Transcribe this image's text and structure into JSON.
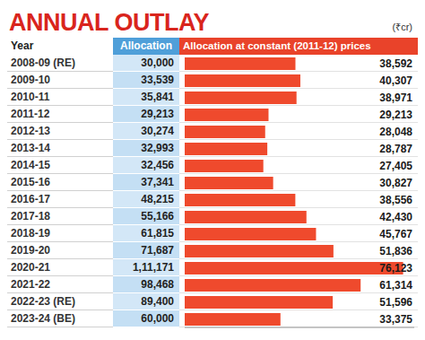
{
  "chart_data": {
    "type": "bar",
    "orientation": "horizontal",
    "title": "ANNUAL OUTLAY",
    "subtitle": "(₹cr)",
    "categories": [
      "2008-09 (RE)",
      "2009-10",
      "2010-11",
      "2011-12",
      "2012-13",
      "2013-14",
      "2014-15",
      "2015-16",
      "2016-17",
      "2017-18",
      "2018-19",
      "2019-20",
      "2020-21",
      "2021-22",
      "2022-23 (RE)",
      "2023-24 (BE)"
    ],
    "series": [
      {
        "name": "Allocation at constant (2011-12) prices",
        "color": "#ef4a2d",
        "values": [
          38592,
          40307,
          38971,
          29213,
          28048,
          28787,
          27405,
          30827,
          38556,
          42430,
          45767,
          51836,
          76123,
          61314,
          51596,
          33375
        ],
        "value_labels": [
          "38,592",
          "40,307",
          "38,971",
          "29,213",
          "28,048",
          "28,787",
          "27,405",
          "30,827",
          "38,556",
          "42,430",
          "45,767",
          "51,836",
          "76,123",
          "61,314",
          "51,596",
          "33,375"
        ]
      }
    ],
    "xlim": [
      0,
      80000
    ],
    "tick_labels": false,
    "data_labels": true,
    "grid": false
  },
  "table": {
    "headers": [
      "Year",
      "Allocation"
    ],
    "allocation": [
      "30,000",
      "33,539",
      "35,841",
      "29,213",
      "30,274",
      "32,993",
      "32,456",
      "37,341",
      "48,215",
      "55,166",
      "61,815",
      "71,687",
      "1,11,171",
      "98,468",
      "89,400",
      "60,000"
    ]
  }
}
